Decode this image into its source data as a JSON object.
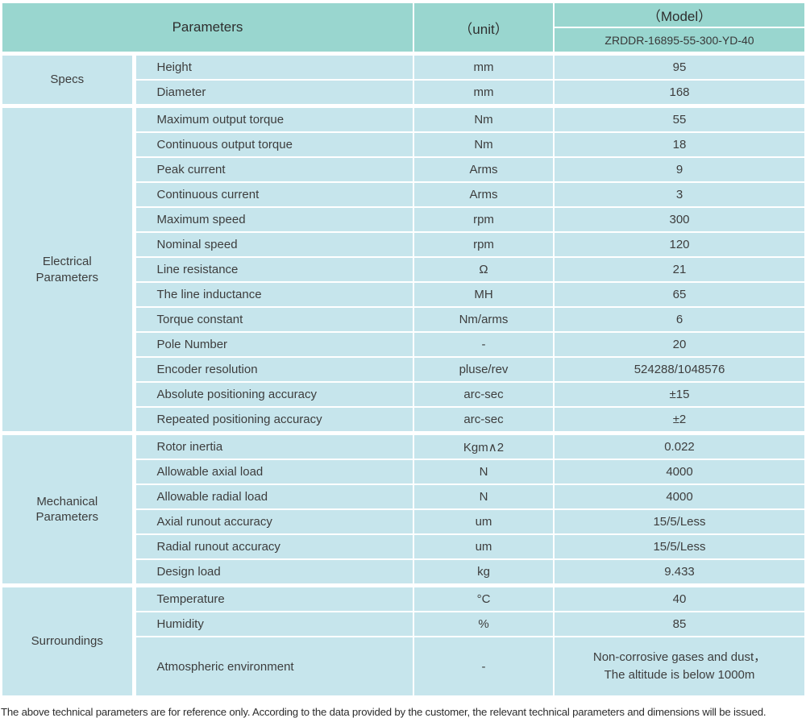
{
  "header": {
    "col_parameters": "Parameters",
    "col_unit": "（unit）",
    "col_model": "（Model）",
    "model_value": "ZRDDR-16895-55-300-YD-40"
  },
  "table": {
    "sections": [
      {
        "label": "Specs",
        "rows": [
          {
            "name": "Height",
            "unit": "mm",
            "value": "95"
          },
          {
            "name": "Diameter",
            "unit": "mm",
            "value": "168"
          }
        ]
      },
      {
        "label": "Electrical\nParameters",
        "rows": [
          {
            "name": "Maximum output torque",
            "unit": "Nm",
            "value": "55"
          },
          {
            "name": "Continuous output torque",
            "unit": "Nm",
            "value": "18"
          },
          {
            "name": "Peak current",
            "unit": "Arms",
            "value": "9"
          },
          {
            "name": "Continuous current",
            "unit": "Arms",
            "value": "3"
          },
          {
            "name": "Maximum speed",
            "unit": "rpm",
            "value": "300"
          },
          {
            "name": "Nominal speed",
            "unit": "rpm",
            "value": "120"
          },
          {
            "name": "Line resistance",
            "unit": "Ω",
            "value": "21"
          },
          {
            "name": "The line inductance",
            "unit": "MH",
            "value": "65"
          },
          {
            "name": "Torque constant",
            "unit": "Nm/arms",
            "value": "6"
          },
          {
            "name": "Pole Number",
            "unit": "-",
            "value": "20"
          },
          {
            "name": "Encoder resolution",
            "unit": "pluse/rev",
            "value": "524288/1048576"
          },
          {
            "name": "Absolute positioning accuracy",
            "unit": "arc-sec",
            "value": "±15"
          },
          {
            "name": "Repeated positioning accuracy",
            "unit": "arc-sec",
            "value": "±2"
          }
        ]
      },
      {
        "label": "Mechanical\nParameters",
        "rows": [
          {
            "name": "Rotor inertia",
            "unit": "Kgm∧2",
            "value": "0.022"
          },
          {
            "name": "Allowable axial load",
            "unit": "N",
            "value": "4000"
          },
          {
            "name": "Allowable radial load",
            "unit": "N",
            "value": "4000"
          },
          {
            "name": "Axial runout accuracy",
            "unit": "um",
            "value": "15/5/Less"
          },
          {
            "name": "Radial runout accuracy",
            "unit": "um",
            "value": "15/5/Less"
          },
          {
            "name": "Design load",
            "unit": "kg",
            "value": "9.433"
          }
        ]
      },
      {
        "label": "Surroundings",
        "rows": [
          {
            "name": "Temperature",
            "unit": "°C",
            "value": "40"
          },
          {
            "name": "Humidity",
            "unit": "%",
            "value": "85"
          },
          {
            "name": "Atmospheric environment",
            "unit": "-",
            "value": "Non-corrosive gases and dust，\nThe altitude is below 1000m"
          }
        ]
      }
    ]
  },
  "footer": {
    "note": "The above technical parameters are for reference only. According to the data provided by the customer, the relevant technical parameters and dimensions will be issued."
  },
  "colors": {
    "header_bg": "#99d6cf",
    "cell_bg": "#c6e5ec",
    "grid": "#ffffff",
    "text": "#3d3d3d"
  }
}
